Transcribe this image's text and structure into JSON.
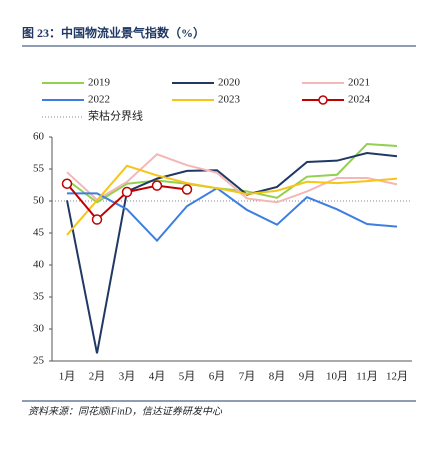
{
  "chart_data": {
    "type": "line",
    "title": "图 23：中国物流业景气指数（%）",
    "source": "资料来源：同花顺iFinD，信达证券研发中心",
    "categories": [
      "1月",
      "2月",
      "3月",
      "4月",
      "5月",
      "6月",
      "7月",
      "8月",
      "9月",
      "10月",
      "11月",
      "12月"
    ],
    "series": [
      {
        "name": "2019",
        "color": "#92d050",
        "values": [
          53.3,
          49.8,
          52.7,
          53.2,
          52.7,
          52.0,
          51.5,
          50.5,
          53.8,
          54.1,
          58.9,
          58.6
        ]
      },
      {
        "name": "2020",
        "color": "#203864",
        "values": [
          50.1,
          26.2,
          51.5,
          53.5,
          54.7,
          54.8,
          51.0,
          52.2,
          56.1,
          56.3,
          57.5,
          57.0
        ]
      },
      {
        "name": "2021",
        "color": "#f4b6b6",
        "values": [
          54.5,
          50.2,
          53.0,
          57.3,
          55.6,
          54.4,
          50.4,
          49.8,
          51.5,
          53.6,
          53.6,
          52.6
        ]
      },
      {
        "name": "2022",
        "color": "#3c7fe0",
        "values": [
          51.2,
          51.2,
          48.7,
          43.8,
          49.2,
          52.0,
          48.6,
          46.3,
          50.6,
          48.7,
          46.4,
          46.0
        ]
      },
      {
        "name": "2023",
        "color": "#f5c518",
        "values": [
          44.7,
          50.1,
          55.5,
          54.0,
          52.8,
          52.0,
          51.1,
          51.6,
          53.0,
          52.8,
          53.1,
          53.5
        ]
      },
      {
        "name": "2024",
        "color": "#c00000",
        "markers": true,
        "values": [
          52.7,
          47.1,
          51.4,
          52.4,
          51.8,
          null,
          null,
          null,
          null,
          null,
          null,
          null
        ]
      }
    ],
    "threshold": {
      "label": "荣枯分界线",
      "value": 50,
      "color": "#888888"
    },
    "ylim": [
      25,
      60
    ],
    "yticks": [
      25,
      30,
      35,
      40,
      45,
      50,
      55,
      60
    ]
  }
}
